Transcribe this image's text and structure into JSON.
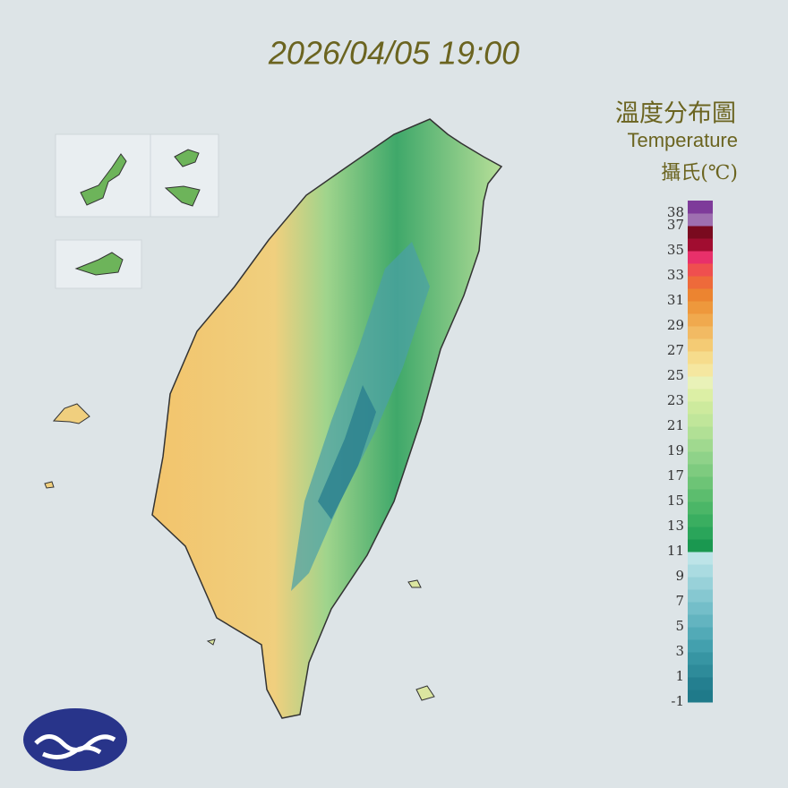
{
  "timestamp": "2026/04/05 19:00",
  "legend": {
    "title": "溫度分布圖",
    "subtitle": "Temperature",
    "unit": "攝氏(℃)",
    "min": -1,
    "max": 39,
    "ticks": [
      38,
      37,
      35,
      33,
      31,
      29,
      27,
      25,
      23,
      21,
      19,
      17,
      15,
      13,
      11,
      9,
      7,
      5,
      3,
      1,
      -1
    ],
    "colors": [
      "#1f7a8a",
      "#247f90",
      "#2e8b9a",
      "#3795a3",
      "#43a0ae",
      "#52aab7",
      "#63b4c0",
      "#74bec9",
      "#86c8d1",
      "#98d1d9",
      "#aadbe1",
      "#bde4e8",
      "#1a9850",
      "#2aa55a",
      "#3aae60",
      "#4bb667",
      "#5cbd6e",
      "#6dc476",
      "#7ecb7f",
      "#8fd289",
      "#a0d98f",
      "#b1e095",
      "#c0e69a",
      "#cdea9d",
      "#dcefa5",
      "#e9f2b8",
      "#f5e7a0",
      "#f6dc8c",
      "#f4cb74",
      "#f2ba63",
      "#f0a94e",
      "#ee983c",
      "#ec8430",
      "#ee6a3a",
      "#ef4f4f",
      "#e8306a",
      "#a10d30",
      "#7a0a1f",
      "#9e6fb0",
      "#7e3b9a"
    ]
  }
}
